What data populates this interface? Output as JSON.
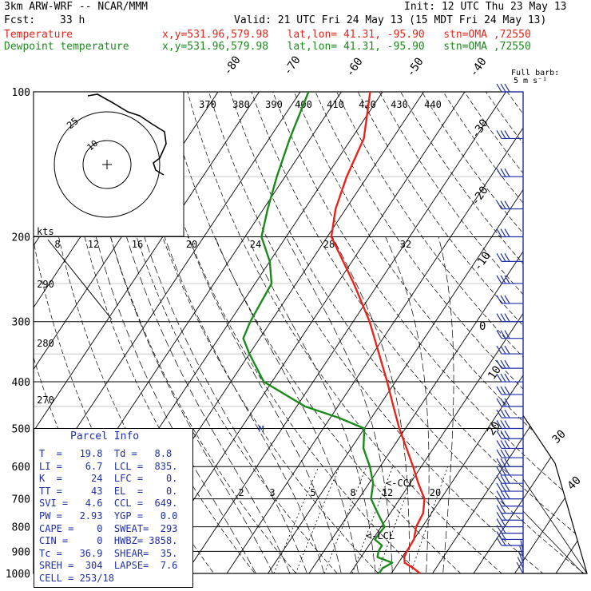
{
  "header": {
    "model": "3km ARW-WRF -- NCAR/MMM",
    "init": "Init: 12 UTC Thu 23 May 13",
    "fcst_label": "Fcst:",
    "fcst_value": "33 h",
    "valid": "Valid: 21 UTC Fri 24 May 13 (15 MDT Fri 24 May 13)",
    "temp_label": "Temperature",
    "dew_label": "Dewpoint temperature",
    "temp_loc": "x,y=531.96,579.98   lat,lon= 41.31, -95.90   stn=OMA ,72550",
    "dew_loc": "x,y=531.96,579.98   lat,lon= 41.31, -95.90   stn=OMA ,72550"
  },
  "colors": {
    "temperature": "#e8231c",
    "dewpoint": "#1b8a1b",
    "parcel_text": "#1f2fa8",
    "wind": "#1f2fa8",
    "hodograph": "#000000"
  },
  "chart_data": {
    "type": "skew-T log-p sounding",
    "y_axis": "pressure (hPa), log scale",
    "pressure_labels": [
      "100",
      "200",
      "300",
      "400",
      "500",
      "600",
      "700",
      "800",
      "900",
      "1000"
    ],
    "isotherm_labels": [
      "-80",
      "-70",
      "-60",
      "-50",
      "-40",
      "-30",
      "-20",
      "-10",
      "0",
      "10",
      "20",
      "30",
      "40"
    ],
    "theta_labels": [
      "370",
      "380",
      "390",
      "400",
      "410",
      "420",
      "430",
      "440"
    ],
    "theta_left_labels": [
      "290",
      "280",
      "270"
    ],
    "mixing_ratio_labels": [
      "2",
      "3",
      "5",
      "8",
      "12",
      "20"
    ],
    "hodo_speed_labels": [
      "8",
      "12",
      "16",
      "20",
      "24",
      "28",
      "32"
    ],
    "hodo_units": "kts",
    "hodo_ring_labels": [
      "25",
      "10"
    ],
    "barb_legend_line1": "Full barb:",
    "barb_legend_line2": "5 m s⁻¹",
    "lcl_label": "<-LCL",
    "ccl_label": "<-CCL",
    "parcel_marker": "M",
    "temperature": [
      [
        1000,
        27
      ],
      [
        975,
        24.5
      ],
      [
        950,
        21.5
      ],
      [
        925,
        20.5
      ],
      [
        900,
        20.2
      ],
      [
        850,
        20
      ],
      [
        800,
        18.5
      ],
      [
        750,
        18
      ],
      [
        700,
        16
      ],
      [
        650,
        12
      ],
      [
        600,
        8
      ],
      [
        550,
        3.5
      ],
      [
        500,
        -1.5
      ],
      [
        450,
        -6.5
      ],
      [
        400,
        -12
      ],
      [
        350,
        -18.5
      ],
      [
        300,
        -26
      ],
      [
        250,
        -36
      ],
      [
        200,
        -49
      ],
      [
        175,
        -52.5
      ],
      [
        150,
        -55
      ],
      [
        125,
        -57
      ],
      [
        100,
        -63
      ]
    ],
    "dewpoint": [
      [
        1000,
        17
      ],
      [
        975,
        17
      ],
      [
        950,
        18.5
      ],
      [
        925,
        14
      ],
      [
        900,
        13.3
      ],
      [
        875,
        13.2
      ],
      [
        850,
        10.5
      ],
      [
        800,
        10.8
      ],
      [
        750,
        7
      ],
      [
        700,
        3
      ],
      [
        650,
        1
      ],
      [
        600,
        -2.5
      ],
      [
        550,
        -7
      ],
      [
        500,
        -10
      ],
      [
        475,
        -18
      ],
      [
        450,
        -28
      ],
      [
        400,
        -42
      ],
      [
        350,
        -50
      ],
      [
        325,
        -54
      ],
      [
        300,
        -55
      ],
      [
        250,
        -56
      ],
      [
        225,
        -60
      ],
      [
        200,
        -66
      ],
      [
        175,
        -69
      ],
      [
        150,
        -72
      ],
      [
        125,
        -75
      ],
      [
        100,
        -78
      ]
    ],
    "wind_levels": [
      1000,
      975,
      950,
      925,
      900,
      875,
      850,
      825,
      800,
      775,
      750,
      725,
      700,
      675,
      650,
      625,
      600,
      575,
      550,
      525,
      500,
      475,
      450,
      425,
      400,
      375,
      350,
      325,
      300,
      275,
      250,
      225,
      200,
      175,
      150,
      125,
      100
    ]
  },
  "parcel_info": {
    "title": "Parcel Info",
    "rows": [
      "T  =   19.8  Td =   8.8",
      "LI =    6.7  LCL =  835.",
      "K  =     24  LFC =    0.",
      "TT =     43  EL  =    0.",
      "SVI =   4.6  CCL =  649.",
      "PW =   2.93  YGP =   0.0",
      "CAPE =    0  SWEAT=  293",
      "CIN =     0  HWBZ= 3858.",
      "Tc =   36.9  SHEAR=  35.",
      "SREH =  304  LAPSE=  7.6",
      "CELL = 253/18"
    ]
  }
}
